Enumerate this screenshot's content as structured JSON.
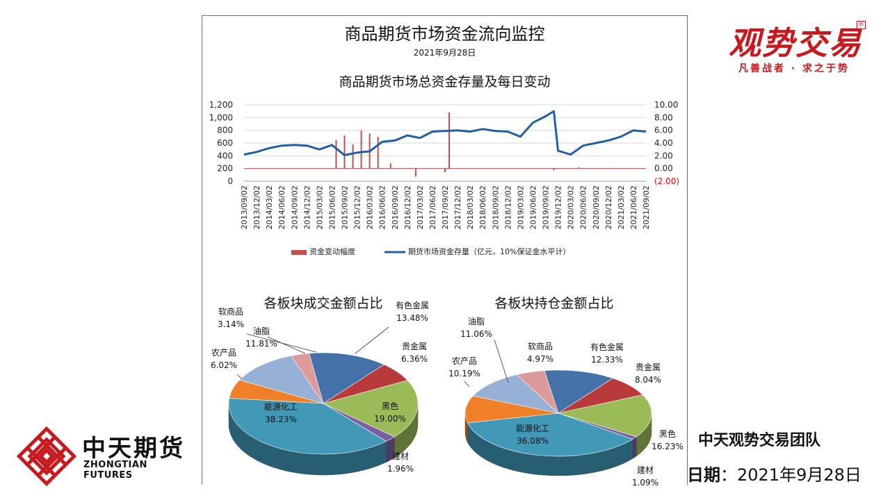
{
  "panel": {
    "title": "商品期货市场资金流向监控",
    "date": "2021年9月28日"
  },
  "brand": {
    "name": "观势交易",
    "mark": "®",
    "slogan": "凡善战者 · 求之于势",
    "color": "#c8191f"
  },
  "company": {
    "name_cn": "中天期货",
    "name_en": "ZHONGTIAN FUTURES",
    "logo_color": "#c8191f"
  },
  "footer": {
    "team": "中天观势交易团队",
    "date_label": "日期",
    "date_sep": "：",
    "date_value": "2021年9月28日"
  },
  "chart_data": [
    {
      "type": "line",
      "title": "商品期货市场总资金存量及每日变动",
      "x_ticks": [
        "2013/09/02",
        "2013/12/02",
        "2014/03/02",
        "2014/06/02",
        "2014/09/02",
        "2014/12/02",
        "2015/03/02",
        "2015/06/02",
        "2015/09/02",
        "2015/12/02",
        "2016/03/02",
        "2016/06/02",
        "2016/09/02",
        "2016/12/02",
        "2017/03/02",
        "2017/06/02",
        "2017/09/02",
        "2017/12/02",
        "2018/03/02",
        "2018/06/02",
        "2018/09/02",
        "2018/12/02",
        "2019/03/02",
        "2019/06/02",
        "2019/09/02",
        "2019/12/02",
        "2020/03/02",
        "2020/06/02",
        "2020/09/02",
        "2020/12/02",
        "2021/03/02",
        "2021/06/02",
        "2021/09/02"
      ],
      "y_left": {
        "ticks": [
          "0",
          "200",
          "400",
          "600",
          "800",
          "1,000",
          "1,200"
        ],
        "range": [
          0,
          1200
        ]
      },
      "y_right": {
        "ticks": [
          "(2.00)",
          "0.00",
          "2.00",
          "4.00",
          "6.00",
          "8.00",
          "10.00"
        ],
        "range": [
          -2,
          10
        ],
        "negative_color": "#ff0000"
      },
      "series": [
        {
          "name": "期货市场资金存量（亿元，10%保证金水平计）",
          "axis": "left",
          "color": "#1f5fa6",
          "x": [
            "2013/09",
            "2013/12",
            "2014/03",
            "2014/06",
            "2014/09",
            "2014/12",
            "2015/03",
            "2015/06",
            "2015/09",
            "2015/12",
            "2016/03",
            "2016/06",
            "2016/09",
            "2016/12",
            "2017/03",
            "2017/06",
            "2017/09",
            "2017/12",
            "2018/03",
            "2018/06",
            "2018/09",
            "2018/12",
            "2019/03",
            "2019/06",
            "2019/09",
            "2019/11",
            "2019/12",
            "2020/03",
            "2020/06",
            "2020/09",
            "2020/12",
            "2021/03",
            "2021/06",
            "2021/09"
          ],
          "values": [
            420,
            460,
            520,
            560,
            570,
            560,
            500,
            570,
            410,
            450,
            470,
            620,
            640,
            720,
            680,
            780,
            790,
            800,
            780,
            820,
            790,
            780,
            700,
            920,
            1020,
            1100,
            480,
            420,
            560,
            600,
            640,
            700,
            800,
            780
          ]
        },
        {
          "name": "资金变动幅度",
          "axis": "right",
          "color": "#c0504d",
          "x": [
            "2015/07",
            "2015/09",
            "2015/11",
            "2016/01",
            "2016/03",
            "2016/05",
            "2016/08",
            "2017/02",
            "2017/09",
            "2017/10",
            "2019/11",
            "2020/05",
            "2021/01"
          ],
          "values": [
            4.5,
            5.2,
            3.8,
            6.0,
            5.5,
            5.0,
            0.8,
            -1.3,
            -0.6,
            8.8,
            -0.3,
            0.2,
            0.1
          ]
        }
      ],
      "legend_position": "bottom"
    },
    {
      "type": "pie",
      "title": "各板块成交金额占比",
      "slices": [
        {
          "name": "有色金属",
          "value": 13.48,
          "label": "13.48%",
          "color": "#4472a8"
        },
        {
          "name": "贵金属",
          "value": 6.36,
          "label": "6.36%",
          "color": "#b83a3a"
        },
        {
          "name": "黑色",
          "value": 19.0,
          "label": "19.00%",
          "color": "#9bbb59"
        },
        {
          "name": "建材",
          "value": 1.96,
          "label": "1.96%",
          "color": "#7a5fa0"
        },
        {
          "name": "能源化工",
          "value": 38.23,
          "label": "38.23%",
          "color": "#4198b7"
        },
        {
          "name": "农产品",
          "value": 6.02,
          "label": "6.02%",
          "color": "#f07f2a"
        },
        {
          "name": "油脂",
          "value": 11.81,
          "label": "11.81%",
          "color": "#96b0d6"
        },
        {
          "name": "软商品",
          "value": 3.14,
          "label": "3.14%",
          "color": "#dc9a9a"
        }
      ]
    },
    {
      "type": "pie",
      "title": "各板块持仓金额占比",
      "slices": [
        {
          "name": "有色金属",
          "value": 12.33,
          "label": "12.33%",
          "color": "#4472a8"
        },
        {
          "name": "贵金属",
          "value": 8.04,
          "label": "8.04%",
          "color": "#b83a3a"
        },
        {
          "name": "黑色",
          "value": 16.23,
          "label": "16.23%",
          "color": "#9bbb59"
        },
        {
          "name": "建材",
          "value": 1.09,
          "label": "1.09%",
          "color": "#7a5fa0"
        },
        {
          "name": "能源化工",
          "value": 36.08,
          "label": "36.08%",
          "color": "#4198b7"
        },
        {
          "name": "农产品",
          "value": 10.19,
          "label": "10.19%",
          "color": "#f07f2a"
        },
        {
          "name": "油脂",
          "value": 11.06,
          "label": "11.06%",
          "color": "#96b0d6"
        },
        {
          "name": "软商品",
          "value": 4.97,
          "label": "4.97%",
          "color": "#dc9a9a"
        }
      ]
    }
  ]
}
